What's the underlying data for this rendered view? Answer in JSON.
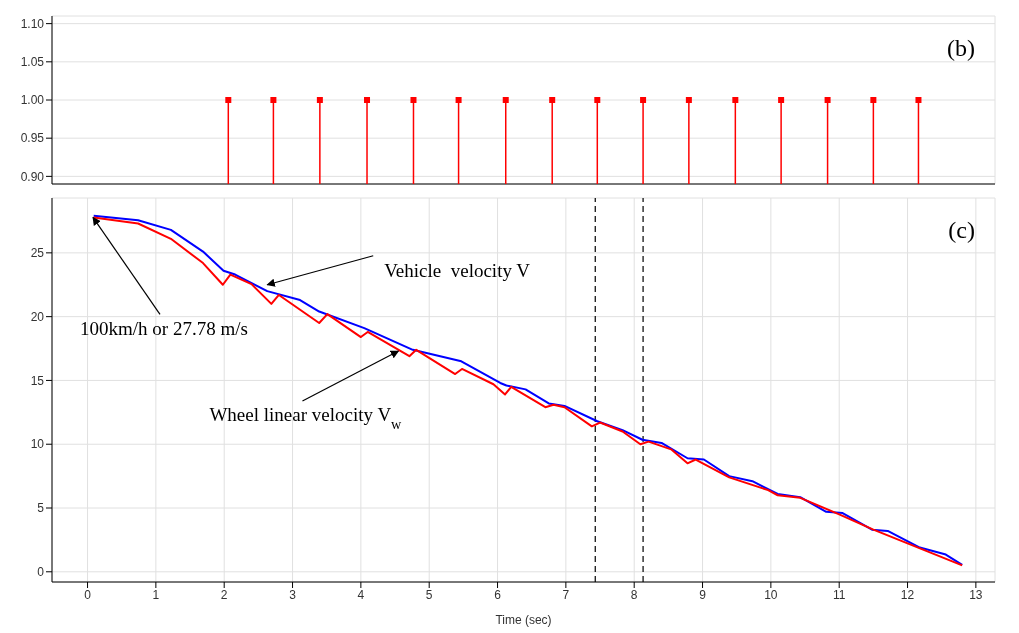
{
  "chart_data": [
    {
      "type": "lollipop",
      "annotations": [
        "(b)"
      ],
      "marker": "square",
      "grid": true,
      "tick_labels": "y",
      "xlim": [
        -0.52,
        13.28
      ],
      "xticks": [
        0,
        1,
        2,
        3,
        4,
        5,
        6,
        7,
        8,
        9,
        10,
        11,
        12,
        13
      ],
      "ylim": [
        0.89,
        1.11
      ],
      "yticks": [
        {
          "value": 0.9,
          "label": "0.90"
        },
        0.95,
        {
          "value": 1.0,
          "label": "1.00"
        },
        1.05,
        {
          "value": 1.1,
          "label": "1.10"
        }
      ],
      "series": [
        {
          "color": "#ff0000",
          "x": [
            2.06,
            2.72,
            3.4,
            4.09,
            4.77,
            5.43,
            6.12,
            6.8,
            7.46,
            8.13,
            8.8,
            9.48,
            10.15,
            10.83,
            11.5,
            12.16
          ],
          "values": [
            1,
            1,
            1,
            1,
            1,
            1,
            1,
            1,
            1,
            1,
            1,
            1,
            1,
            1,
            1,
            1
          ]
        }
      ]
    },
    {
      "type": "line",
      "xlabel": "Time (sec)",
      "grid": true,
      "marker": "none",
      "line_style": "solid",
      "annotations": [
        "(c)",
        {
          "text": "Vehicle  velocity V",
          "x": 2.63,
          "y": 22.5
        },
        {
          "text": "100km/h or 27.78 m/s",
          "x": 0.08,
          "y": 27.78
        },
        {
          "text": "Wheel linear velocity V$_{w}$",
          "x": 4.55,
          "y": 17.3
        }
      ],
      "xlim": [
        -0.52,
        13.28
      ],
      "xticks": [
        0,
        1,
        2,
        3,
        4,
        5,
        6,
        7,
        8,
        9,
        10,
        11,
        12,
        13
      ],
      "ylim": [
        -0.8,
        29.3
      ],
      "yticks": [
        0,
        5,
        10,
        15,
        20,
        25
      ],
      "ref_lines": [
        {
          "axis": "x",
          "value": 7.43,
          "color": "#000000",
          "line_style": "dashed"
        },
        {
          "axis": "x",
          "value": 8.13,
          "color": "#000000",
          "line_style": "dashed"
        }
      ],
      "series": [
        {
          "color": "#0000ff",
          "x": [
            0.09,
            0.74,
            1.22,
            1.69,
            1.99,
            2.16,
            2.63,
            3.11,
            3.39,
            4.05,
            4.76,
            5.47,
            6.04,
            6.13,
            6.41,
            6.75,
            6.98,
            7.46,
            7.83,
            8.12,
            8.4,
            8.78,
            9.02,
            9.39,
            9.73,
            10.1,
            10.43,
            10.81,
            11.05,
            11.48,
            11.71,
            12.18,
            12.56,
            12.8
          ],
          "values": [
            27.9,
            27.56,
            26.8,
            25.1,
            23.6,
            23.3,
            22.0,
            21.3,
            20.4,
            19.1,
            17.4,
            16.5,
            14.8,
            14.6,
            14.3,
            13.2,
            13.0,
            11.8,
            11.1,
            10.35,
            10.1,
            8.9,
            8.8,
            7.5,
            7.1,
            6.1,
            5.85,
            4.7,
            4.6,
            3.3,
            3.2,
            1.9,
            1.35,
            0.54
          ]
        },
        {
          "color": "#ff0000",
          "x": [
            0.09,
            0.74,
            1.22,
            1.69,
            1.98,
            2.09,
            2.4,
            2.69,
            2.8,
            3.39,
            3.51,
            4.0,
            4.1,
            4.71,
            4.81,
            5.38,
            5.48,
            5.94,
            6.11,
            6.2,
            6.7,
            6.82,
            6.98,
            7.38,
            7.5,
            7.83,
            8.09,
            8.21,
            8.54,
            8.78,
            8.9,
            9.39,
            9.96,
            10.1,
            10.43,
            11.0,
            11.5,
            12.2,
            12.8
          ],
          "values": [
            27.78,
            27.3,
            26.1,
            24.2,
            22.5,
            23.3,
            22.55,
            21.0,
            21.7,
            19.5,
            20.2,
            18.4,
            18.8,
            16.9,
            17.4,
            15.5,
            15.9,
            14.7,
            13.9,
            14.5,
            12.9,
            13.1,
            12.9,
            11.4,
            11.7,
            11.0,
            10.0,
            10.2,
            9.6,
            8.5,
            8.8,
            7.4,
            6.4,
            6.0,
            5.8,
            4.5,
            3.3,
            1.8,
            0.5
          ]
        }
      ]
    }
  ]
}
